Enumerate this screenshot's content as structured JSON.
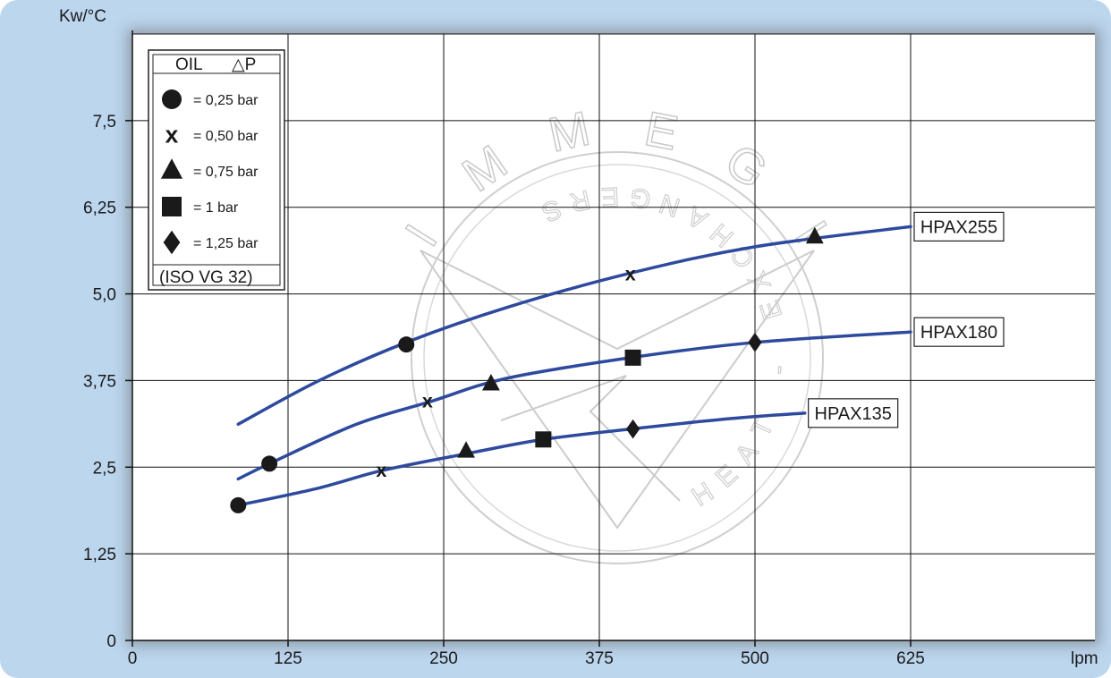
{
  "chart_data": {
    "type": "line",
    "x_unit": "lpm",
    "y_unit": "Kw/°C",
    "xlim": [
      0,
      625
    ],
    "ylim": [
      0,
      8.75
    ],
    "x_ticks": [
      "0",
      "125",
      "250",
      "375",
      "500",
      "625"
    ],
    "y_ticks": [
      "0",
      "1,25",
      "2,5",
      "3,75",
      "5,0",
      "6,25",
      "7,5"
    ],
    "x_tick_values": [
      0,
      125,
      250,
      375,
      500,
      625
    ],
    "y_tick_values": [
      0,
      1.25,
      2.5,
      3.75,
      5.0,
      6.25,
      7.5
    ],
    "grid": true,
    "legend": {
      "position": "top-left",
      "header_oil": "OIL",
      "header_dp": "△P",
      "footer": "(ISO VG 32)",
      "entries": [
        {
          "marker": "circle",
          "label": "= 0,25 bar"
        },
        {
          "marker": "x",
          "label": "= 0,50 bar"
        },
        {
          "marker": "triangle",
          "label": "= 0,75 bar"
        },
        {
          "marker": "square",
          "label": "= 1 bar"
        },
        {
          "marker": "diamond",
          "label": "= 1,25 bar"
        }
      ]
    },
    "series": [
      {
        "name": "HPAX255",
        "color": "#2e4a9e",
        "curve": [
          [
            85,
            3.12
          ],
          [
            150,
            3.75
          ],
          [
            220,
            4.3
          ],
          [
            300,
            4.8
          ],
          [
            400,
            5.3
          ],
          [
            500,
            5.68
          ],
          [
            625,
            5.97
          ]
        ],
        "points": [
          {
            "x": 220,
            "y": 4.27,
            "marker": "circle"
          },
          {
            "x": 400,
            "y": 5.28,
            "marker": "x"
          },
          {
            "x": 548,
            "y": 5.82,
            "marker": "triangle"
          }
        ]
      },
      {
        "name": "HPAX180",
        "color": "#2e4a9e",
        "curve": [
          [
            85,
            2.33
          ],
          [
            110,
            2.55
          ],
          [
            180,
            3.12
          ],
          [
            240,
            3.45
          ],
          [
            300,
            3.78
          ],
          [
            400,
            4.08
          ],
          [
            500,
            4.3
          ],
          [
            625,
            4.45
          ]
        ],
        "points": [
          {
            "x": 110,
            "y": 2.55,
            "marker": "circle"
          },
          {
            "x": 237,
            "y": 3.45,
            "marker": "x"
          },
          {
            "x": 288,
            "y": 3.7,
            "marker": "triangle"
          },
          {
            "x": 402,
            "y": 4.08,
            "marker": "square"
          },
          {
            "x": 500,
            "y": 4.3,
            "marker": "diamond"
          }
        ]
      },
      {
        "name": "HPAX135",
        "color": "#2e4a9e",
        "curve": [
          [
            85,
            1.95
          ],
          [
            150,
            2.2
          ],
          [
            200,
            2.45
          ],
          [
            270,
            2.7
          ],
          [
            330,
            2.9
          ],
          [
            400,
            3.05
          ],
          [
            480,
            3.2
          ],
          [
            540,
            3.28
          ]
        ],
        "points": [
          {
            "x": 85,
            "y": 1.95,
            "marker": "circle"
          },
          {
            "x": 200,
            "y": 2.45,
            "marker": "x"
          },
          {
            "x": 268,
            "y": 2.73,
            "marker": "triangle"
          },
          {
            "x": 330,
            "y": 2.9,
            "marker": "square"
          },
          {
            "x": 402,
            "y": 3.05,
            "marker": "diamond"
          }
        ]
      }
    ]
  },
  "watermark": {
    "brand_letters": [
      "I",
      "M",
      "M",
      "E",
      "G",
      "I"
    ],
    "subtitle": "HEAT - EXCHANGERS"
  }
}
